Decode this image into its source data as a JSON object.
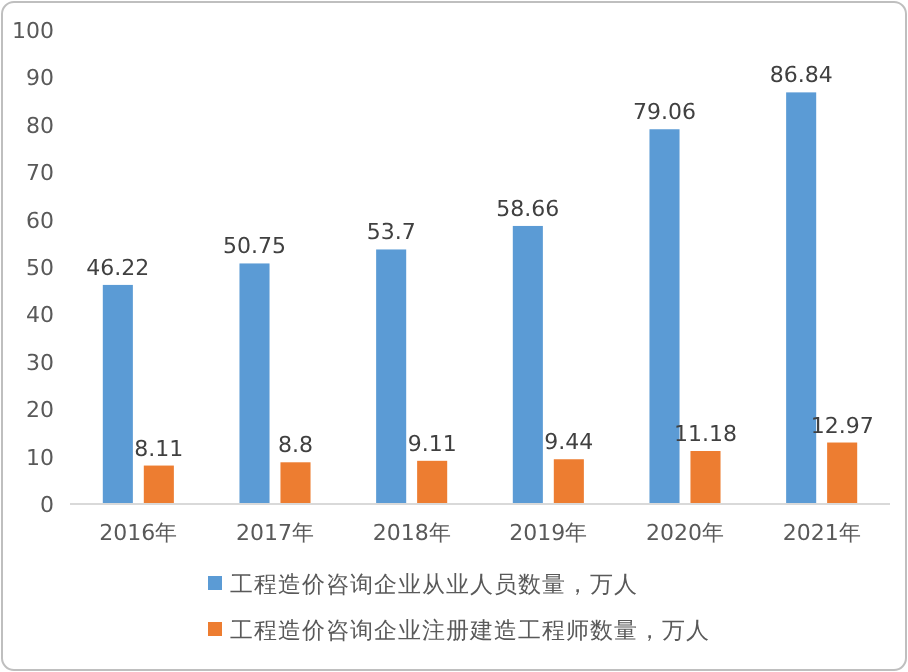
{
  "chart_data": {
    "type": "bar",
    "categories": [
      "2016年",
      "2017年",
      "2018年",
      "2019年",
      "2020年",
      "2021年"
    ],
    "series": [
      {
        "name": "工程造价咨询企业从业人员数量，万人",
        "color": "#5b9bd5",
        "values": [
          46.22,
          50.75,
          53.7,
          58.66,
          79.06,
          86.84
        ]
      },
      {
        "name": "工程造价咨询企业注册建造工程师数量，万人",
        "color": "#ed7d31",
        "values": [
          8.11,
          8.8,
          9.11,
          9.44,
          11.18,
          12.97
        ]
      }
    ],
    "ylim": [
      0,
      100
    ],
    "yticks": [
      0,
      10,
      20,
      30,
      40,
      50,
      60,
      70,
      80,
      90,
      100
    ],
    "data_labels": true,
    "legend": "bottom"
  }
}
